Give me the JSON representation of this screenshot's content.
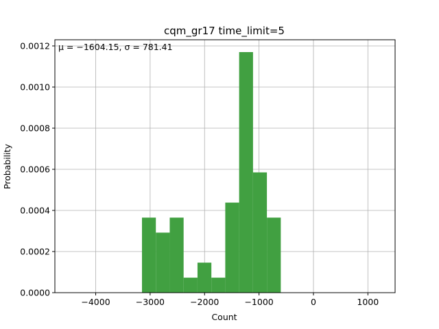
{
  "chart_data": {
    "type": "bar",
    "title": "cqm_gr17 time_limit=5",
    "xlabel": "Count",
    "ylabel": "Probability",
    "annotation": "μ = −1604.15,  σ = 781.41",
    "xlim": [
      -4750,
      1500
    ],
    "ylim": [
      0,
      0.00123
    ],
    "xticks": [
      -4000,
      -3000,
      -2000,
      -1000,
      0,
      1000
    ],
    "xtick_labels": [
      "−4000",
      "−3000",
      "−2000",
      "−1000",
      "0",
      "1000"
    ],
    "yticks": [
      0,
      0.0002,
      0.0004,
      0.0006,
      0.0008,
      0.001,
      0.0012
    ],
    "ytick_labels": [
      "0.0000",
      "0.0002",
      "0.0004",
      "0.0006",
      "0.0008",
      "0.0010",
      "0.0012"
    ],
    "grid": true,
    "bar_color": "#41a041",
    "bins": [
      {
        "x0": -3150,
        "x1": -2895,
        "value": 0.000365
      },
      {
        "x0": -2895,
        "x1": -2640,
        "value": 0.000292
      },
      {
        "x0": -2640,
        "x1": -2385,
        "value": 0.000365
      },
      {
        "x0": -2385,
        "x1": -2130,
        "value": 7.3e-05
      },
      {
        "x0": -2130,
        "x1": -1875,
        "value": 0.000146
      },
      {
        "x0": -1875,
        "x1": -1620,
        "value": 7.3e-05
      },
      {
        "x0": -1620,
        "x1": -1365,
        "value": 0.000438
      },
      {
        "x0": -1365,
        "x1": -1110,
        "value": 0.00117
      },
      {
        "x0": -1110,
        "x1": -855,
        "value": 0.000585
      },
      {
        "x0": -855,
        "x1": -600,
        "value": 0.000365
      }
    ]
  }
}
